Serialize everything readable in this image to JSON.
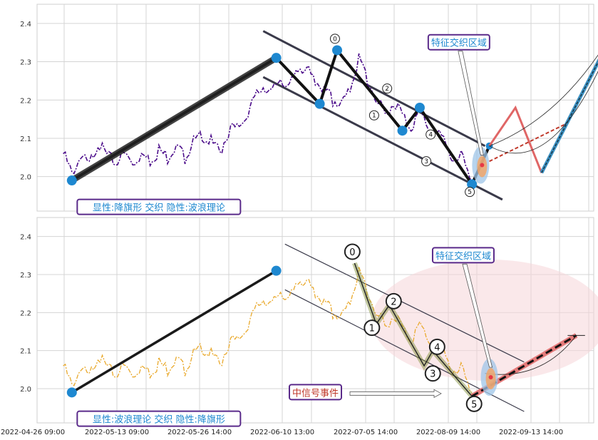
{
  "chart_data": [
    {
      "type": "line",
      "panel": "top",
      "ylim": [
        1.91,
        2.45
      ],
      "xlim": [
        0,
        128
      ],
      "yticks": [
        2.0,
        2.1,
        2.2,
        2.3,
        2.4
      ],
      "grid": true,
      "colors": {
        "price": "#4b0c8a",
        "zigzag": "#111111",
        "node": "#1e88d0",
        "channel": "#3a3a4a",
        "forecast_blue": "#3a8fc0",
        "forecast_red": "#e06666",
        "callout_border": "#5a2a8a",
        "callout_text": "#1e88d0"
      },
      "price_anchors": [
        [
          6,
          2.06
        ],
        [
          8,
          2.01
        ],
        [
          10,
          2.05
        ],
        [
          12,
          2.03
        ],
        [
          14,
          2.09
        ],
        [
          16,
          2.05
        ],
        [
          18,
          2.04
        ],
        [
          20,
          2.06
        ],
        [
          22,
          2.04
        ],
        [
          24,
          2.06
        ],
        [
          26,
          2.04
        ],
        [
          28,
          2.07
        ],
        [
          30,
          2.05
        ],
        [
          32,
          2.08
        ],
        [
          34,
          2.05
        ],
        [
          36,
          2.09
        ],
        [
          38,
          2.11
        ],
        [
          40,
          2.09
        ],
        [
          42,
          2.06
        ],
        [
          44,
          2.12
        ],
        [
          46,
          2.13
        ],
        [
          48,
          2.15
        ],
        [
          50,
          2.2
        ],
        [
          52,
          2.24
        ],
        [
          54,
          2.22
        ],
        [
          56,
          2.26
        ],
        [
          58,
          2.23
        ],
        [
          60,
          2.29
        ],
        [
          62,
          2.28
        ],
        [
          64,
          2.25
        ],
        [
          66,
          2.23
        ],
        [
          68,
          2.2
        ],
        [
          70,
          2.19
        ],
        [
          72,
          2.23
        ],
        [
          74,
          2.31
        ],
        [
          76,
          2.25
        ],
        [
          78,
          2.2
        ],
        [
          80,
          2.16
        ],
        [
          82,
          2.2
        ],
        [
          84,
          2.16
        ],
        [
          86,
          2.13
        ],
        [
          88,
          2.17
        ],
        [
          90,
          2.13
        ],
        [
          92,
          2.11
        ],
        [
          94,
          2.09
        ],
        [
          96,
          2.03
        ],
        [
          98,
          2.06
        ],
        [
          100,
          1.99
        ]
      ],
      "zigzag": [
        {
          "x": 8,
          "y": 1.99
        },
        {
          "x": 55,
          "y": 2.31
        },
        {
          "x": 65,
          "y": 2.19
        },
        {
          "x": 69,
          "y": 2.33
        },
        {
          "x": 84,
          "y": 2.12
        },
        {
          "x": 88,
          "y": 2.18
        },
        {
          "x": 100,
          "y": 1.98
        },
        {
          "x": 104,
          "y": 2.08
        }
      ],
      "wave_labels": [
        {
          "label": "0",
          "x": 68.5,
          "y": 2.36
        },
        {
          "label": "1",
          "x": 77.5,
          "y": 2.16
        },
        {
          "label": "2",
          "x": 80.5,
          "y": 2.23
        },
        {
          "label": "3",
          "x": 89.5,
          "y": 2.04
        },
        {
          "label": "4",
          "x": 90.5,
          "y": 2.11
        },
        {
          "label": "5",
          "x": 99.5,
          "y": 1.96
        }
      ],
      "channel_upper": [
        [
          52,
          2.38
        ],
        [
          103,
          2.08
        ]
      ],
      "channel_lower": [
        [
          52,
          2.26
        ],
        [
          107,
          1.94
        ]
      ],
      "forecast_red": [
        [
          104,
          2.08
        ],
        [
          110,
          2.18
        ],
        [
          116,
          2.01
        ],
        [
          124,
          2.14
        ]
      ],
      "forecast_red_dashed": [
        [
          104,
          2.04
        ],
        [
          122,
          2.14
        ]
      ],
      "forecast_blue": [
        [
          116,
          2.01
        ],
        [
          134,
          2.41
        ]
      ],
      "callouts": [
        {
          "text": "特征交织区域",
          "x": 97,
          "y": 2.35
        },
        {
          "text": "显性:降旗形 交织 隐性:波浪理论",
          "x": 28,
          "y": 1.92
        }
      ]
    },
    {
      "type": "line",
      "panel": "bottom",
      "ylim": [
        1.91,
        2.45
      ],
      "xlim": [
        0,
        128
      ],
      "yticks": [
        2.0,
        2.1,
        2.2,
        2.3,
        2.4
      ],
      "xticks": [
        "2022-04-26 09:00",
        "2022-05-13 09:00",
        "2022-05-26 14:00",
        "2022-06-10 13:00",
        "2022-07-05 14:00",
        "2022-08-09 14:00",
        "2022-09-13 14:00"
      ],
      "grid": true,
      "colors": {
        "price": "#e9a92c",
        "zigzag": "#1a1a1a",
        "node": "#1e88d0",
        "channel": "#3a3a4a",
        "wave_fill": "#7a8a2e",
        "ellipse": "#f6d6d8",
        "forecast_red": "#e06666",
        "callout_border": "#5a2a8a",
        "callout_text": "#1e88d0",
        "event_text": "#c0392b"
      },
      "price_anchors": [
        [
          6,
          2.06
        ],
        [
          8,
          2.01
        ],
        [
          10,
          2.05
        ],
        [
          12,
          2.03
        ],
        [
          14,
          2.09
        ],
        [
          16,
          2.05
        ],
        [
          18,
          2.04
        ],
        [
          20,
          2.06
        ],
        [
          22,
          2.04
        ],
        [
          24,
          2.06
        ],
        [
          26,
          2.04
        ],
        [
          28,
          2.07
        ],
        [
          30,
          2.05
        ],
        [
          32,
          2.08
        ],
        [
          34,
          2.05
        ],
        [
          36,
          2.09
        ],
        [
          38,
          2.11
        ],
        [
          40,
          2.09
        ],
        [
          42,
          2.06
        ],
        [
          44,
          2.12
        ],
        [
          46,
          2.13
        ],
        [
          48,
          2.15
        ],
        [
          50,
          2.2
        ],
        [
          52,
          2.24
        ],
        [
          54,
          2.22
        ],
        [
          56,
          2.26
        ],
        [
          58,
          2.23
        ],
        [
          60,
          2.29
        ],
        [
          62,
          2.28
        ],
        [
          64,
          2.25
        ],
        [
          66,
          2.23
        ],
        [
          68,
          2.2
        ],
        [
          70,
          2.19
        ],
        [
          72,
          2.23
        ],
        [
          74,
          2.31
        ],
        [
          76,
          2.25
        ],
        [
          78,
          2.2
        ],
        [
          80,
          2.16
        ],
        [
          82,
          2.2
        ],
        [
          84,
          2.16
        ],
        [
          86,
          2.13
        ],
        [
          88,
          2.17
        ],
        [
          90,
          2.13
        ],
        [
          92,
          2.11
        ],
        [
          94,
          2.09
        ],
        [
          96,
          2.03
        ],
        [
          98,
          2.06
        ],
        [
          100,
          1.99
        ]
      ],
      "zigzag": [
        {
          "x": 8,
          "y": 1.99
        },
        {
          "x": 55,
          "y": 2.31
        }
      ],
      "wave": [
        {
          "label": "0",
          "x": 73,
          "y": 2.33
        },
        {
          "label": "1",
          "x": 78,
          "y": 2.17
        },
        {
          "label": "2",
          "x": 81,
          "y": 2.22
        },
        {
          "label": "3",
          "x": 89,
          "y": 2.06
        },
        {
          "label": "4",
          "x": 91,
          "y": 2.1
        },
        {
          "label": "5",
          "x": 100,
          "y": 1.98
        }
      ],
      "wave_labels": [
        {
          "label": "0",
          "x": 72.5,
          "y": 2.36
        },
        {
          "label": "1",
          "x": 77,
          "y": 2.16
        },
        {
          "label": "2",
          "x": 82,
          "y": 2.23
        },
        {
          "label": "3",
          "x": 91,
          "y": 2.04
        },
        {
          "label": "4",
          "x": 92,
          "y": 2.11
        },
        {
          "label": "5",
          "x": 100.5,
          "y": 1.96
        }
      ],
      "channel_upper": [
        [
          57,
          2.38
        ],
        [
          112,
          2.07
        ]
      ],
      "channel_lower": [
        [
          57,
          2.26
        ],
        [
          112,
          1.94
        ]
      ],
      "forecast_red": [
        [
          100,
          1.98
        ],
        [
          124,
          2.14
        ]
      ],
      "callouts": [
        {
          "text": "特征交织区域",
          "x": 98,
          "y": 2.35
        },
        {
          "text": "显性:波浪理论 交织 隐性:降旗形",
          "x": 28,
          "y": 1.92
        },
        {
          "text": "中信号事件",
          "x": 64,
          "y": 1.99
        }
      ]
    }
  ]
}
